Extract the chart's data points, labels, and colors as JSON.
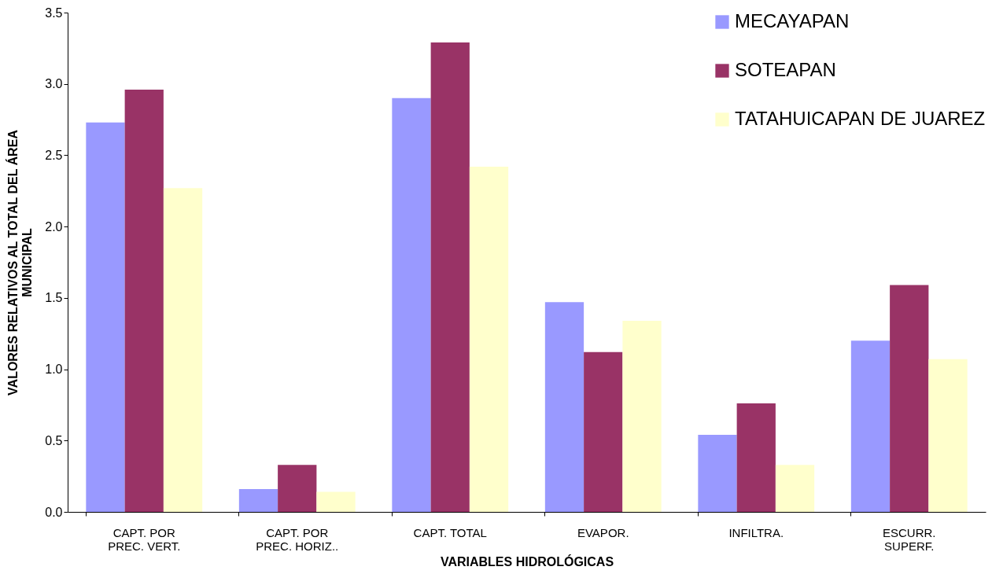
{
  "chart_data": {
    "type": "bar",
    "xlabel": "VARIABLES HIDROLÓGICAS",
    "ylabel": "VALORES RELATIVOS AL TOTAL DEL ÁREA\nMUNICIPAL",
    "categories": [
      "CAPT. POR\nPREC. VERT.",
      "CAPT. POR\nPREC. HORIZ..",
      "CAPT. TOTAL",
      "EVAPOR.",
      "INFILTRA.",
      "ESCURR.\nSUPERF."
    ],
    "series": [
      {
        "name": "MECAYAPAN",
        "color": "#9999ff",
        "values": [
          2.73,
          0.16,
          2.9,
          1.47,
          0.54,
          1.2
        ]
      },
      {
        "name": "SOTEAPAN",
        "color": "#993366",
        "values": [
          2.96,
          0.33,
          3.29,
          1.12,
          0.76,
          1.59
        ]
      },
      {
        "name": "TATAHUICAPAN DE JUAREZ",
        "color": "#ffffcc",
        "values": [
          2.27,
          0.14,
          2.42,
          1.34,
          0.33,
          1.07
        ]
      }
    ],
    "ylim": [
      0,
      3.5
    ],
    "yticks": [
      {
        "value": 0,
        "label": "0.0"
      },
      {
        "value": 0.5,
        "label": "0.5"
      },
      {
        "value": 1,
        "label": "1.0"
      },
      {
        "value": 1.5,
        "label": "1.5"
      },
      {
        "value": 2,
        "label": "2.0"
      },
      {
        "value": 2.5,
        "label": "2.5"
      },
      {
        "value": 3,
        "label": "3.0"
      },
      {
        "value": 3.5,
        "label": "3.5"
      }
    ],
    "grid": false,
    "legend": "top right"
  }
}
